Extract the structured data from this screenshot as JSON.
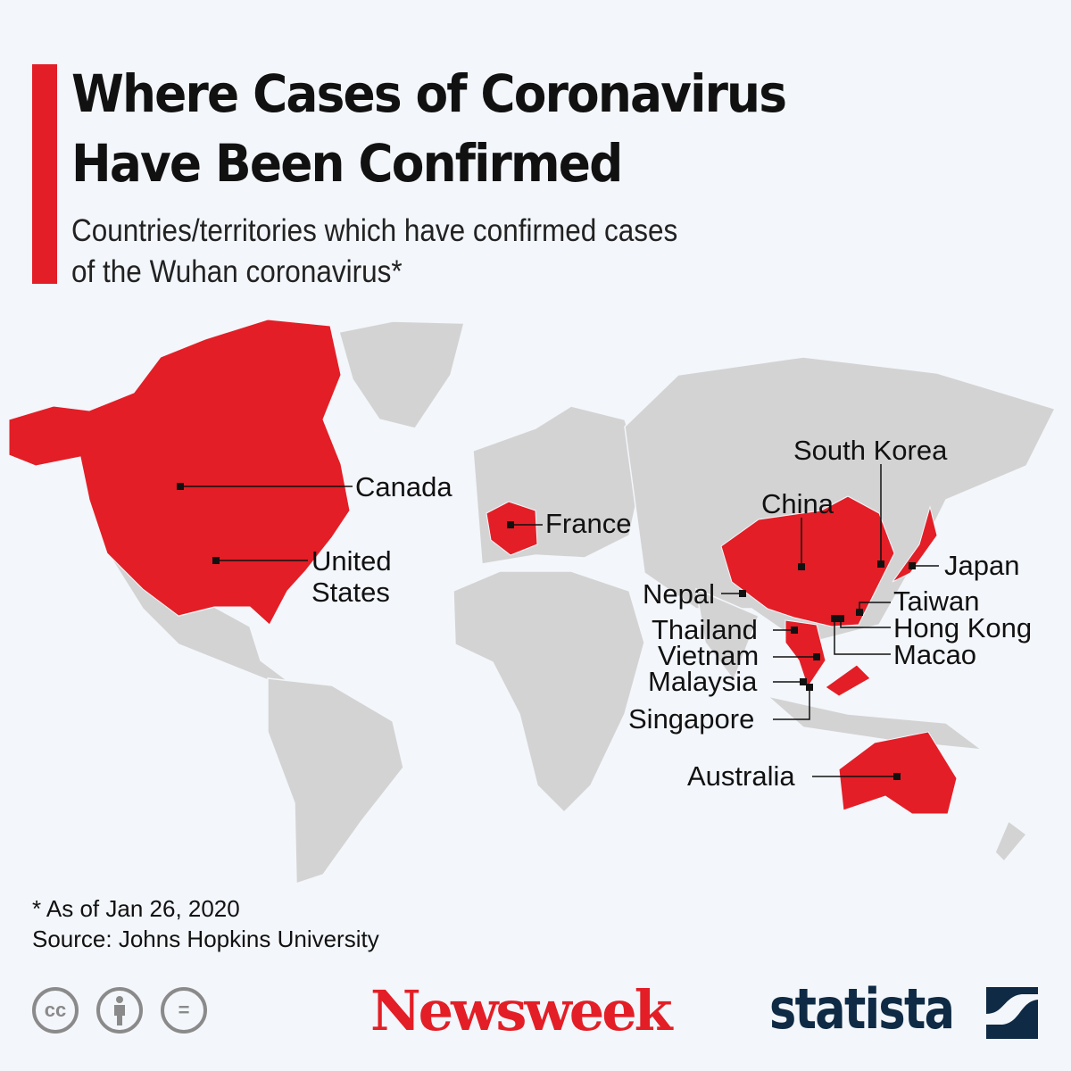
{
  "header": {
    "title_line1": "Where Cases of Coronavirus",
    "title_line2": "Have Been Confirmed",
    "subtitle_line1": "Countries/territories which have confirmed cases",
    "subtitle_line2": "of the Wuhan coronavirus*"
  },
  "colors": {
    "accent": "#e31e26",
    "land": "#d3d3d3",
    "background": "#f3f6fa",
    "statista": "#0f2a44"
  },
  "map": {
    "legend_meaning": "red = confirmed cases",
    "countries": [
      {
        "name": "Canada"
      },
      {
        "name": "United States"
      },
      {
        "name": "France"
      },
      {
        "name": "South Korea"
      },
      {
        "name": "China"
      },
      {
        "name": "Japan"
      },
      {
        "name": "Nepal"
      },
      {
        "name": "Taiwan"
      },
      {
        "name": "Thailand"
      },
      {
        "name": "Hong Kong"
      },
      {
        "name": "Vietnam"
      },
      {
        "name": "Macao"
      },
      {
        "name": "Malaysia"
      },
      {
        "name": "Singapore"
      },
      {
        "name": "Australia"
      }
    ],
    "labels": {
      "canada": "Canada",
      "us1": "United",
      "us2": "States",
      "france": "France",
      "korea": "South Korea",
      "china": "China",
      "japan": "Japan",
      "nepal": "Nepal",
      "taiwan": "Taiwan",
      "thailand": "Thailand",
      "hongkong": "Hong Kong",
      "vietnam": "Vietnam",
      "macao": "Macao",
      "malaysia": "Malaysia",
      "singapore": "Singapore",
      "australia": "Australia"
    }
  },
  "footer": {
    "note": "* As of Jan 26, 2020",
    "source": "Source: Johns Hopkins University",
    "cc": "cc",
    "by_icon": "person-icon",
    "nd": "=",
    "newsweek": "Newsweek",
    "statista": "statista"
  }
}
